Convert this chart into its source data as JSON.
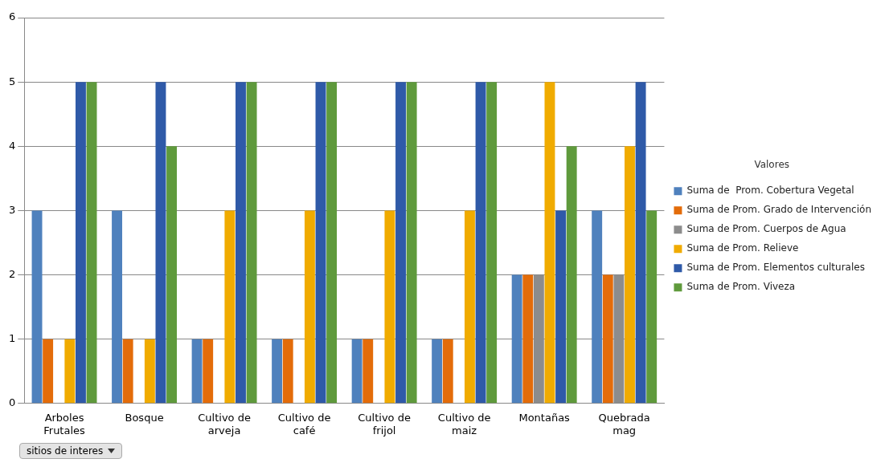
{
  "chart_data": {
    "type": "bar",
    "categories": [
      "Arboles Frutales",
      "Bosque",
      "Cultivo de arveja",
      "Cultivo de café",
      "Cultivo de frijol",
      "Cultivo de maiz",
      "Montañas",
      "Quebrada mag"
    ],
    "series": [
      {
        "name": "Suma de  Prom. Cobertura Vegetal",
        "color": "#4f81bd",
        "values": [
          3,
          3,
          1,
          1,
          1,
          1,
          2,
          3
        ]
      },
      {
        "name": "Suma de Prom. Grado de Intervención",
        "color": "#e36c0a",
        "values": [
          1,
          1,
          1,
          1,
          1,
          1,
          2,
          2
        ]
      },
      {
        "name": "Suma de Prom. Cuerpos de Agua",
        "color": "#8c8c8c",
        "values": [
          0,
          0,
          0,
          0,
          0,
          0,
          2,
          2
        ]
      },
      {
        "name": "Suma de Prom. Relieve",
        "color": "#f0ab00",
        "values": [
          1,
          1,
          3,
          3,
          3,
          3,
          5,
          4
        ]
      },
      {
        "name": "Suma de Prom. Elementos culturales",
        "color": "#2f5aa8",
        "values": [
          5,
          5,
          5,
          5,
          5,
          5,
          3,
          5
        ]
      },
      {
        "name": "Suma de Prom. Viveza",
        "color": "#5f9a3c",
        "values": [
          5,
          4,
          5,
          5,
          5,
          5,
          4,
          3
        ]
      }
    ],
    "ylim": [
      0,
      6
    ],
    "yticks": [
      0,
      1,
      2,
      3,
      4,
      5,
      6
    ],
    "grid": "y",
    "legend": "right",
    "legend_title": "Valores",
    "annotations": [
      "sitios de interes"
    ]
  }
}
